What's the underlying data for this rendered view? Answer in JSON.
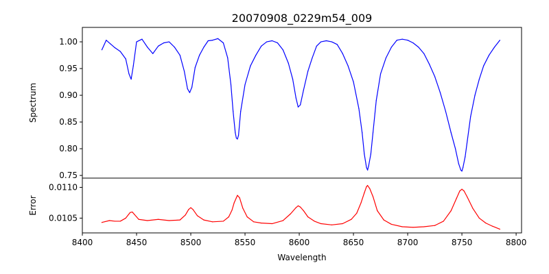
{
  "chart_data": {
    "type": "line",
    "title": "20070908_0229m54_009",
    "xlabel": "Wavelength",
    "xlim": [
      8400,
      8805
    ],
    "xticks": [
      8400,
      8450,
      8500,
      8550,
      8600,
      8650,
      8700,
      8750,
      8800
    ],
    "xtick_labels": [
      "8400",
      "8450",
      "8500",
      "8550",
      "8600",
      "8650",
      "8700",
      "8750",
      "8800"
    ],
    "grid": false,
    "panels": [
      {
        "name": "spectrum",
        "ylabel": "Spectrum",
        "ylim": [
          0.745,
          1.027
        ],
        "yticks": [
          0.75,
          0.8,
          0.85,
          0.9,
          0.95,
          1.0
        ],
        "ytick_labels": [
          "0.75",
          "0.80",
          "0.85",
          "0.90",
          "0.95",
          "1.00"
        ],
        "series": [
          {
            "color": "#0000ff",
            "x": [
              8418,
              8422,
              8426,
              8430,
              8435,
              8440,
              8443,
              8445,
              8447,
              8450,
              8455,
              8460,
              8465,
              8470,
              8475,
              8480,
              8485,
              8490,
              8494,
              8497,
              8499,
              8501,
              8504,
              8508,
              8512,
              8516,
              8520,
              8525,
              8530,
              8534,
              8537,
              8539,
              8541,
              8542,
              8543,
              8544,
              8546,
              8550,
              8555,
              8560,
              8565,
              8570,
              8575,
              8580,
              8585,
              8590,
              8594,
              8597,
              8599,
              8601,
              8604,
              8608,
              8612,
              8616,
              8620,
              8625,
              8630,
              8635,
              8640,
              8645,
              8650,
              8655,
              8658,
              8660,
              8662,
              8663,
              8664,
              8666,
              8668,
              8671,
              8675,
              8680,
              8685,
              8690,
              8695,
              8700,
              8705,
              8710,
              8715,
              8720,
              8725,
              8730,
              8735,
              8740,
              8744,
              8747,
              8749,
              8750,
              8751,
              8753,
              8755,
              8758,
              8762,
              8766,
              8770,
              8775,
              8780,
              8785
            ],
            "y": [
              0.985,
              1.003,
              0.996,
              0.989,
              0.982,
              0.968,
              0.94,
              0.93,
              0.955,
              1.0,
              1.005,
              0.99,
              0.978,
              0.992,
              0.998,
              1.0,
              0.99,
              0.975,
              0.945,
              0.912,
              0.905,
              0.915,
              0.952,
              0.975,
              0.99,
              1.002,
              1.003,
              1.006,
              0.998,
              0.97,
              0.92,
              0.87,
              0.83,
              0.82,
              0.818,
              0.825,
              0.87,
              0.92,
              0.955,
              0.975,
              0.992,
              1.0,
              1.002,
              0.998,
              0.985,
              0.96,
              0.93,
              0.895,
              0.878,
              0.882,
              0.91,
              0.945,
              0.97,
              0.992,
              1.0,
              1.002,
              1.0,
              0.995,
              0.978,
              0.955,
              0.925,
              0.875,
              0.83,
              0.79,
              0.765,
              0.76,
              0.768,
              0.79,
              0.83,
              0.89,
              0.94,
              0.97,
              0.99,
              1.003,
              1.005,
              1.003,
              0.998,
              0.99,
              0.978,
              0.958,
              0.935,
              0.905,
              0.87,
              0.83,
              0.8,
              0.772,
              0.76,
              0.758,
              0.765,
              0.785,
              0.815,
              0.86,
              0.9,
              0.93,
              0.955,
              0.975,
              0.99,
              1.003
            ]
          }
        ]
      },
      {
        "name": "error",
        "ylabel": "Error",
        "ylim": [
          0.01026,
          0.01115
        ],
        "yticks": [
          0.0105,
          0.011
        ],
        "ytick_labels": [
          "0.0105",
          "0.0110"
        ],
        "series": [
          {
            "color": "#ff0000",
            "x": [
              8418,
              8425,
              8430,
              8435,
              8440,
              8444,
              8446,
              8448,
              8452,
              8460,
              8470,
              8480,
              8490,
              8495,
              8498,
              8500,
              8502,
              8506,
              8512,
              8520,
              8530,
              8535,
              8538,
              8540,
              8542,
              8543,
              8545,
              8548,
              8552,
              8558,
              8565,
              8575,
              8585,
              8592,
              8597,
              8599,
              8601,
              8604,
              8608,
              8614,
              8620,
              8630,
              8640,
              8648,
              8653,
              8657,
              8660,
              8662,
              8663,
              8665,
              8668,
              8672,
              8678,
              8685,
              8695,
              8705,
              8715,
              8725,
              8733,
              8740,
              8745,
              8748,
              8750,
              8752,
              8755,
              8760,
              8766,
              8772,
              8778,
              8785
            ],
            "y": [
              0.01043,
              0.01046,
              0.01045,
              0.01045,
              0.0105,
              0.01059,
              0.0106,
              0.01056,
              0.01048,
              0.01046,
              0.01048,
              0.01046,
              0.01047,
              0.01055,
              0.01064,
              0.01067,
              0.01064,
              0.01054,
              0.01047,
              0.01044,
              0.01045,
              0.01052,
              0.01063,
              0.01075,
              0.01083,
              0.01087,
              0.01083,
              0.01066,
              0.01052,
              0.01044,
              0.01042,
              0.01041,
              0.01046,
              0.01057,
              0.01067,
              0.0107,
              0.01068,
              0.01062,
              0.01052,
              0.01045,
              0.01041,
              0.01039,
              0.01041,
              0.01048,
              0.01058,
              0.01075,
              0.01091,
              0.01101,
              0.01103,
              0.01098,
              0.01085,
              0.01062,
              0.01047,
              0.0104,
              0.01036,
              0.01035,
              0.01036,
              0.01038,
              0.01045,
              0.01062,
              0.01082,
              0.01094,
              0.01097,
              0.01094,
              0.01084,
              0.01066,
              0.0105,
              0.01042,
              0.01037,
              0.01032
            ]
          }
        ]
      }
    ]
  }
}
